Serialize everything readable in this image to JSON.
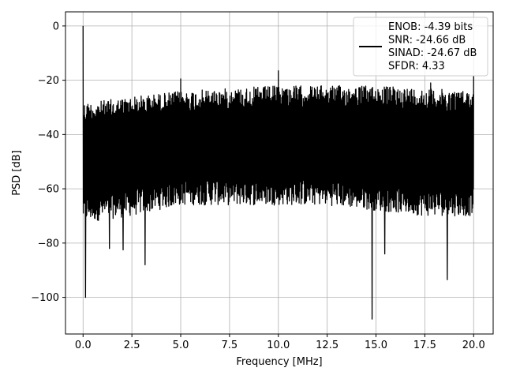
{
  "chart_data": {
    "type": "line",
    "title": "",
    "xlabel": "Frequency [MHz]",
    "ylabel": "PSD [dB]",
    "xlim": [
      -0.9,
      21.0
    ],
    "ylim": [
      -113.5,
      5.2
    ],
    "grid": true,
    "x_ticks": [
      0.0,
      2.5,
      5.0,
      7.5,
      10.0,
      12.5,
      15.0,
      17.5,
      20.0
    ],
    "x_tick_labels": [
      "0.0",
      "2.5",
      "5.0",
      "7.5",
      "10.0",
      "12.5",
      "15.0",
      "17.5",
      "20.0"
    ],
    "y_ticks": [
      0,
      -20,
      -40,
      -60,
      -80,
      -100
    ],
    "y_tick_labels": [
      "0",
      "−20",
      "−40",
      "−60",
      "−80",
      "−100"
    ],
    "legend": {
      "placement": "upper right",
      "entries": [
        "ENOB: -4.39 bits",
        "SNR: -24.66 dB",
        "SINAD: -24.67 dB",
        "SFDR: 4.33"
      ]
    },
    "series": [
      {
        "color": "#000000",
        "description_points": {
          "x": [
            0.0,
            0.1,
            0.5,
            2.5,
            5.0,
            7.5,
            10.0,
            12.5,
            15.0,
            17.5,
            20.0
          ],
          "upper": [
            0.0,
            -24,
            -28,
            -26,
            -24,
            -23,
            -22,
            -22,
            -22,
            -23,
            -24
          ],
          "lower": [
            -70,
            -100,
            -72,
            -70,
            -66,
            -66,
            -66,
            -66,
            -68,
            -70,
            -70
          ]
        },
        "spikes": [
          {
            "x": 0.0,
            "y": 0.0
          },
          {
            "x": 0.12,
            "y": -100.0
          },
          {
            "x": 5.0,
            "y": -19.5
          },
          {
            "x": 10.0,
            "y": -16.5
          },
          {
            "x": 14.8,
            "y": -108.0
          },
          {
            "x": 20.0,
            "y": -18.5
          },
          {
            "x": 17.8,
            "y": -21.0
          },
          {
            "x": 3.18,
            "y": -88.0
          },
          {
            "x": 18.65,
            "y": -93.5
          },
          {
            "x": 15.45,
            "y": -84.0
          },
          {
            "x": 1.35,
            "y": -82.0
          },
          {
            "x": 2.05,
            "y": -82.5
          }
        ]
      }
    ]
  }
}
